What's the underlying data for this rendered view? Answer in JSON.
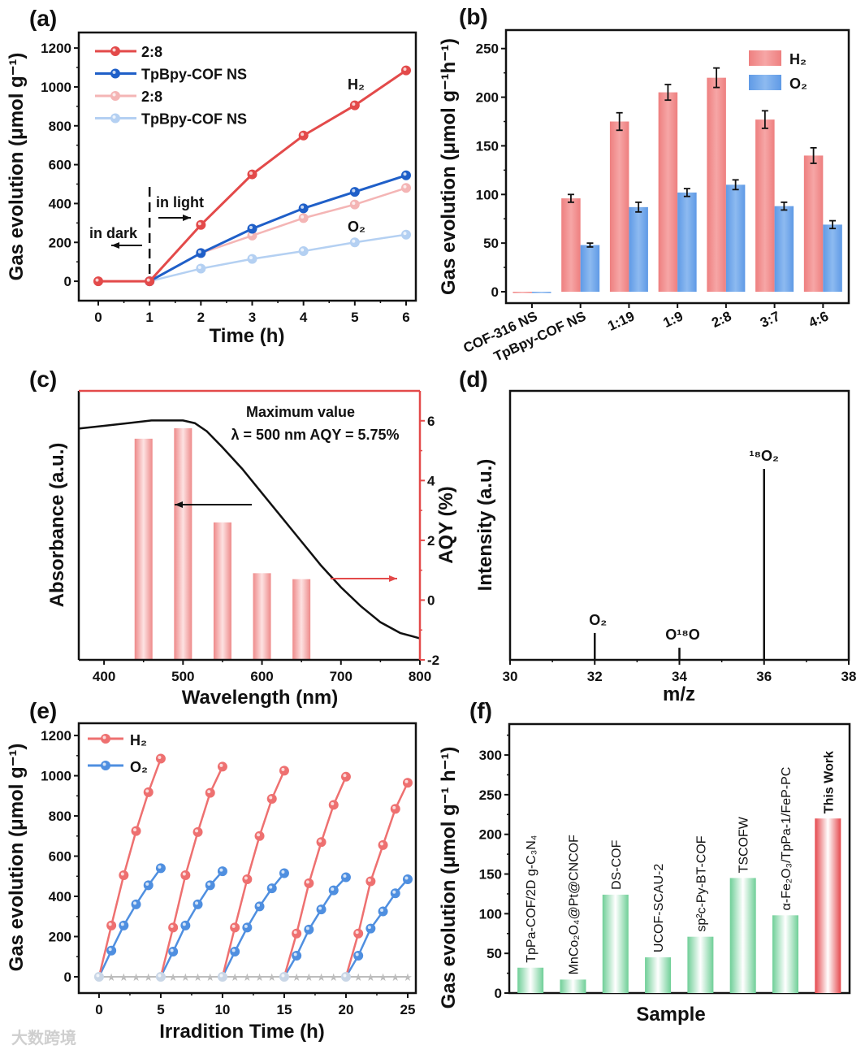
{
  "watermark": "大数跨境",
  "chart_data": [
    {
      "panel": "(a)",
      "type": "line",
      "xlabel": "Time (h)",
      "ylabel": "Gas evolution (μmol g⁻¹)",
      "x": [
        0,
        1,
        2,
        3,
        4,
        5,
        6
      ],
      "xlim": [
        -0.38,
        6.19
      ],
      "ylim": [
        -100,
        1280
      ],
      "xticks": [
        0,
        1,
        2,
        3,
        4,
        5,
        6
      ],
      "yticks": [
        0,
        200,
        400,
        600,
        800,
        1000,
        1200
      ],
      "series": [
        {
          "name": "2:8",
          "gas": "H2",
          "color": "#e34a4a",
          "values": [
            0,
            0,
            290,
            550,
            750,
            905,
            1085
          ]
        },
        {
          "name": "TpBpy-COF NS",
          "gas": "H2",
          "color": "#1f5fc8",
          "values": [
            null,
            0,
            145,
            270,
            375,
            460,
            545
          ]
        },
        {
          "name": "2:8",
          "gas": "O2",
          "color": "#f4b5b5",
          "values": [
            null,
            0,
            145,
            235,
            325,
            395,
            480
          ]
        },
        {
          "name": "TpBpy-COF NS",
          "gas": "O2",
          "color": "#b4d0f2",
          "values": [
            null,
            0,
            65,
            115,
            155,
            200,
            240
          ]
        }
      ],
      "annotations": {
        "h2": "H₂",
        "o2": "O₂",
        "light": "in light",
        "dark": "in dark"
      },
      "legend": "top-left"
    },
    {
      "panel": "(b)",
      "type": "bar",
      "ylabel": "Gas evolution (μmol g⁻¹h⁻¹)",
      "categories": [
        "COF-316 NS",
        "TpBpy-COF NS",
        "1:19",
        "1:9",
        "2:8",
        "3:7",
        "4:6"
      ],
      "ylim": [
        -11.7,
        269
      ],
      "yticks": [
        0,
        50,
        100,
        150,
        200,
        250
      ],
      "series": [
        {
          "name": "H₂",
          "color": "#f08484",
          "values": [
            0,
            96,
            175,
            205,
            220,
            177,
            140
          ],
          "errors": [
            0,
            4,
            9,
            8,
            10,
            9,
            8
          ]
        },
        {
          "name": "O₂",
          "color": "#6fa6ea",
          "values": [
            0,
            48,
            87,
            102,
            110,
            88,
            69
          ],
          "errors": [
            0,
            2,
            5,
            4,
            5,
            4,
            4
          ]
        }
      ],
      "legend": "top-right"
    },
    {
      "panel": "(c)",
      "type": "bar+line",
      "xlabel": "Wavelength (nm)",
      "ylabel_left": "Absorbance (a.u.)",
      "ylabel_right": "AQY (%)",
      "xlim": [
        368,
        800
      ],
      "xticks": [
        400,
        500,
        600,
        700,
        800
      ],
      "ylim_right": [
        -2,
        7
      ],
      "yticks_right": [
        -2,
        0,
        2,
        4,
        6
      ],
      "aqy_bars": {
        "x": [
          450,
          500,
          550,
          600,
          650
        ],
        "values": [
          5.4,
          5.75,
          2.6,
          0.9,
          0.7
        ],
        "color": "#f08c8c"
      },
      "absorbance": {
        "x": [
          368,
          400,
          430,
          460,
          480,
          500,
          515,
          530,
          550,
          575,
          600,
          625,
          650,
          675,
          700,
          725,
          750,
          775,
          800
        ],
        "values": [
          0.86,
          0.87,
          0.88,
          0.89,
          0.89,
          0.89,
          0.88,
          0.85,
          0.79,
          0.71,
          0.62,
          0.53,
          0.44,
          0.35,
          0.27,
          0.2,
          0.14,
          0.1,
          0.08
        ]
      },
      "annotation": {
        "line1": "Maximum value",
        "line2": "λ = 500 nm AQY = 5.75%"
      }
    },
    {
      "panel": "(d)",
      "type": "stem",
      "xlabel": "m/z",
      "ylabel": "Intensity (a.u.)",
      "xlim": [
        30,
        38
      ],
      "xticks": [
        30,
        32,
        34,
        36,
        38
      ],
      "peaks": [
        {
          "x": 32,
          "value": 0.1,
          "label": "O₂",
          "color": "#111111"
        },
        {
          "x": 34,
          "value": 0.045,
          "label": "O¹⁸O",
          "color": "#111111"
        },
        {
          "x": 36,
          "value": 0.71,
          "label": "¹⁸O₂",
          "color": "#e34a4a"
        }
      ]
    },
    {
      "panel": "(e)",
      "type": "line",
      "xlabel": "Irradition Time (h)",
      "ylabel": "Gas evolution (μmol g⁻¹)",
      "xlim": [
        -1.64,
        25.66
      ],
      "ylim": [
        -81,
        1261
      ],
      "xticks": [
        0,
        5,
        10,
        15,
        20,
        25
      ],
      "yticks": [
        0,
        200,
        400,
        600,
        800,
        1000,
        1200
      ],
      "cycles": [
        {
          "start": 0,
          "h2": [
            0,
            255,
            505,
            725,
            918,
            1085
          ],
          "o2": [
            0,
            130,
            255,
            360,
            455,
            540
          ]
        },
        {
          "start": 5,
          "h2": [
            0,
            245,
            505,
            720,
            915,
            1045
          ],
          "o2": [
            0,
            125,
            255,
            360,
            455,
            525
          ]
        },
        {
          "start": 10,
          "h2": [
            0,
            245,
            485,
            700,
            885,
            1025
          ],
          "o2": [
            0,
            125,
            245,
            350,
            440,
            515
          ]
        },
        {
          "start": 15,
          "h2": [
            0,
            215,
            465,
            670,
            855,
            995
          ],
          "o2": [
            0,
            105,
            235,
            335,
            430,
            495
          ]
        },
        {
          "start": 20,
          "h2": [
            0,
            215,
            475,
            655,
            835,
            965
          ],
          "o2": [
            0,
            105,
            240,
            325,
            415,
            485
          ]
        }
      ],
      "series": [
        {
          "name": "H₂",
          "color": "#ee7070"
        },
        {
          "name": "O₂",
          "color": "#4f8fe0"
        }
      ],
      "baseline_color": "#bdbdbd",
      "legend": "top-left"
    },
    {
      "panel": "(f)",
      "type": "bar",
      "xlabel": "Sample",
      "ylabel": "Gas evolution (μmol g⁻¹ h⁻¹)",
      "ylim": [
        0,
        339
      ],
      "yticks": [
        0,
        50,
        100,
        150,
        200,
        250,
        300
      ],
      "categories": [
        "TpPa-COF/2D g-C₃N₄",
        "MnCo₂O₄@Pt@CNCOF",
        "DS-COF",
        "UCOF-SCAU-2",
        "sp²c-Py-BT-COF",
        "TSCOFW",
        "α-Fe₂O₃/TpPa-1/FeP-PC",
        "This Work"
      ],
      "values": [
        32,
        17,
        124,
        45,
        71,
        145,
        98,
        220
      ],
      "colors": [
        "#6fcf97",
        "#6fcf97",
        "#6fcf97",
        "#6fcf97",
        "#6fcf97",
        "#6fcf97",
        "#6fcf97",
        "#e5484d"
      ]
    }
  ]
}
